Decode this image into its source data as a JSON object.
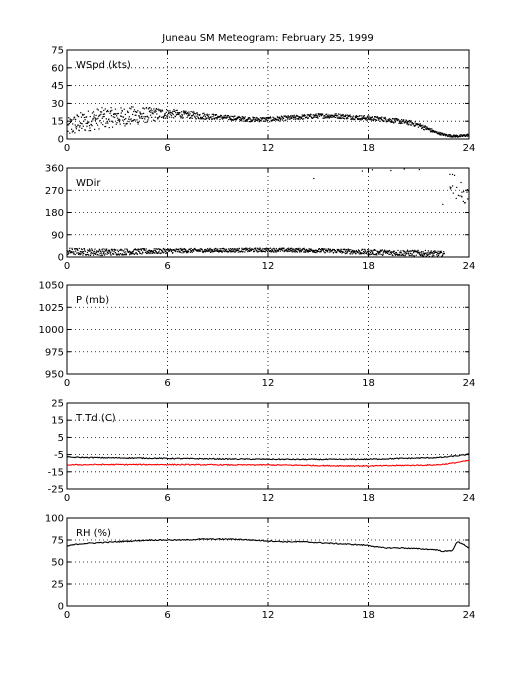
{
  "figure": {
    "title": "Juneau SM Meteogram:   February 25, 1999"
  },
  "chart_data": [
    {
      "type": "scatter",
      "title": "",
      "panel_label": "WSpd (kts)",
      "xlim": [
        0,
        24
      ],
      "ylim": [
        0,
        75
      ],
      "x_ticks": [
        "0",
        "6",
        "12",
        "18",
        "24"
      ],
      "y_ticks": [
        "0",
        "15",
        "30",
        "45",
        "60",
        "75"
      ],
      "grid": true,
      "series": [
        {
          "color": "#000000",
          "x": [
            0.0,
            0.5,
            1.0,
            1.5,
            2.0,
            3.0,
            4.0,
            5.0,
            6.0,
            7.0,
            8.0,
            9.0,
            10.0,
            11.0,
            12.0,
            13.0,
            14.0,
            15.0,
            16.0,
            17.0,
            18.0,
            19.0,
            20.0,
            20.5,
            21.0,
            21.5,
            22.0,
            22.5,
            23.0,
            23.5,
            24.0
          ],
          "y": [
            10,
            13,
            15,
            17,
            18,
            19,
            20,
            21,
            22,
            21,
            20,
            19,
            18,
            17,
            17,
            18,
            19,
            20,
            20,
            19,
            18,
            17,
            15,
            14,
            12,
            9,
            6,
            4,
            3,
            3,
            4
          ],
          "spread": [
            8,
            9,
            9,
            9,
            9,
            8,
            8,
            6,
            4,
            3,
            3,
            2,
            2,
            2,
            2,
            2,
            2,
            2,
            2,
            2,
            2,
            2,
            2,
            2,
            2,
            2,
            1,
            1,
            1,
            1,
            1
          ]
        }
      ]
    },
    {
      "type": "scatter",
      "title": "",
      "panel_label": "WDir",
      "xlim": [
        0,
        24
      ],
      "ylim": [
        0,
        360
      ],
      "x_ticks": [
        "0",
        "6",
        "12",
        "18",
        "24"
      ],
      "y_ticks": [
        "0",
        "90",
        "180",
        "270",
        "360"
      ],
      "grid": true,
      "series": [
        {
          "color": "#000000",
          "x": [
            0.0,
            2.0,
            4.0,
            6.0,
            8.0,
            10.0,
            12.0,
            14.0,
            16.0,
            18.0,
            20.0,
            22.0,
            22.5
          ],
          "y": [
            25,
            22,
            24,
            27,
            29,
            30,
            31,
            30,
            27,
            22,
            19,
            16,
            14
          ],
          "spread": [
            14,
            14,
            12,
            10,
            8,
            8,
            8,
            8,
            9,
            11,
            12,
            12,
            10
          ]
        },
        {
          "color": "#000000",
          "x": [
            14.7,
            17.6,
            18.2,
            19.3,
            20.1,
            21.0,
            22.4,
            23.0,
            23.4,
            23.8
          ],
          "y": [
            320,
            350,
            355,
            352,
            358,
            356,
            215,
            300,
            270,
            245
          ],
          "spread": [
            0,
            0,
            0,
            0,
            0,
            0,
            0,
            40,
            35,
            30
          ]
        }
      ]
    },
    {
      "type": "line",
      "title": "",
      "panel_label": "P (mb)",
      "xlim": [
        0,
        24
      ],
      "ylim": [
        950,
        1050
      ],
      "x_ticks": [
        "0",
        "6",
        "12",
        "18",
        "24"
      ],
      "y_ticks": [
        "950",
        "975",
        "1000",
        "1025",
        "1050"
      ],
      "grid": true,
      "series": []
    },
    {
      "type": "line",
      "title": "",
      "panel_label": "T Td (C)",
      "xlim": [
        0,
        24
      ],
      "ylim": [
        -25,
        25
      ],
      "x_ticks": [
        "0",
        "6",
        "12",
        "18",
        "24"
      ],
      "y_ticks": [
        "-25",
        "-15",
        "-5",
        "5",
        "15",
        "25"
      ],
      "grid": true,
      "series": [
        {
          "color": "#000000",
          "x": [
            0.0,
            2.0,
            4.0,
            6.0,
            8.0,
            10.0,
            12.0,
            14.0,
            16.0,
            18.0,
            19.0,
            20.0,
            21.0,
            22.0,
            22.5,
            23.0,
            23.5,
            24.0
          ],
          "y": [
            -6.5,
            -6.8,
            -7.0,
            -7.2,
            -7.4,
            -7.6,
            -7.7,
            -7.8,
            -7.8,
            -7.7,
            -7.5,
            -7.2,
            -7.0,
            -6.8,
            -6.5,
            -6.0,
            -5.5,
            -4.8
          ]
        },
        {
          "color": "#ff0000",
          "x": [
            0.0,
            2.0,
            4.0,
            6.0,
            8.0,
            10.0,
            12.0,
            14.0,
            15.0,
            16.0,
            18.0,
            19.0,
            20.0,
            21.0,
            22.0,
            22.5,
            23.0,
            23.5,
            24.0
          ],
          "y": [
            -11.0,
            -10.8,
            -10.8,
            -10.8,
            -10.9,
            -11.0,
            -11.0,
            -11.2,
            -11.4,
            -11.5,
            -11.6,
            -11.5,
            -11.3,
            -11.2,
            -11.0,
            -10.6,
            -10.0,
            -9.2,
            -8.4
          ]
        }
      ]
    },
    {
      "type": "line",
      "title": "",
      "panel_label": "RH (%)",
      "xlim": [
        0,
        24
      ],
      "ylim": [
        0,
        100
      ],
      "x_ticks": [
        "0",
        "6",
        "12",
        "18",
        "24"
      ],
      "y_ticks": [
        "0",
        "25",
        "50",
        "75",
        "100"
      ],
      "grid": true,
      "series": [
        {
          "color": "#000000",
          "x": [
            0.0,
            0.5,
            1.0,
            2.0,
            3.0,
            4.0,
            5.0,
            6.0,
            7.0,
            8.0,
            9.0,
            10.0,
            11.0,
            12.0,
            13.0,
            14.0,
            15.0,
            16.0,
            17.0,
            18.0,
            18.5,
            19.0,
            20.0,
            21.0,
            22.0,
            22.5,
            23.0,
            23.3,
            23.6,
            24.0
          ],
          "y": [
            68,
            70,
            71,
            72,
            73,
            74,
            75,
            75,
            75,
            76,
            76,
            76,
            75,
            74,
            73,
            73,
            72,
            71,
            70,
            69,
            67,
            66,
            66,
            65,
            64,
            62,
            63,
            73,
            71,
            66
          ]
        }
      ]
    }
  ]
}
